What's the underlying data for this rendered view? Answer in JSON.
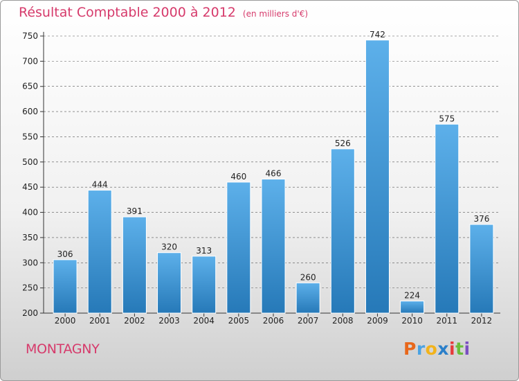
{
  "header": {
    "title": "Résultat Comptable 2000 à 2012",
    "subtitle": "(en milliers d'€)"
  },
  "footer": {
    "place": "MONTAGNY",
    "logo_letters": [
      "P",
      "r",
      "o",
      "x",
      "i",
      "t",
      "i"
    ],
    "logo_colors": [
      "#e8681c",
      "#4ba3e3",
      "#f2b31b",
      "#2a7fc9",
      "#e63b3b",
      "#6bbd3a",
      "#7a4fc1"
    ]
  },
  "colors": {
    "bar_top": "#5db0ea",
    "bar_bottom": "#2679b8",
    "grid": "#555555",
    "text": "#222222",
    "accent": "#d63a6b"
  },
  "chart_data": {
    "type": "bar",
    "title": "Résultat Comptable 2000 à 2012",
    "subtitle": "(en milliers d'€)",
    "xlabel": "",
    "ylabel": "",
    "categories": [
      "2000",
      "2001",
      "2002",
      "2003",
      "2004",
      "2005",
      "2006",
      "2007",
      "2008",
      "2009",
      "2010",
      "2011",
      "2012"
    ],
    "values": [
      306,
      444,
      391,
      320,
      313,
      460,
      466,
      260,
      526,
      742,
      224,
      575,
      376
    ],
    "ylim": [
      200,
      750
    ],
    "yticks": [
      200,
      250,
      300,
      350,
      400,
      450,
      500,
      550,
      600,
      650,
      700,
      750
    ],
    "grid": "horizontal-dashed",
    "legend": "none"
  }
}
